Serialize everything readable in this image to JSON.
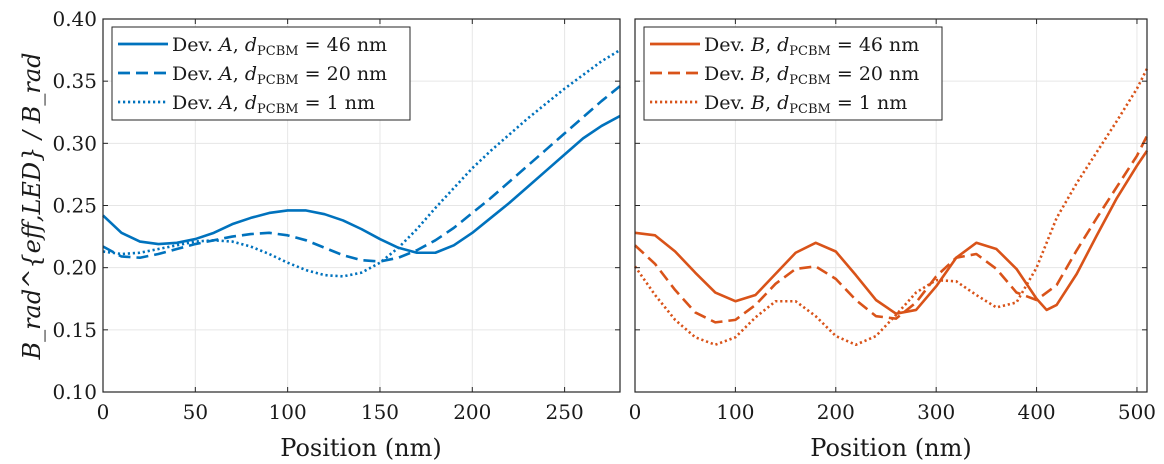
{
  "chart_data": [
    {
      "type": "line",
      "xlabel": "Position (nm)",
      "ylabel": "B_rad^{eff,LED} / B_rad",
      "xlim": [
        0,
        280
      ],
      "ylim": [
        0.1,
        0.4
      ],
      "xticks": [
        0,
        50,
        100,
        150,
        200,
        250
      ],
      "yticks": [
        0.1,
        0.15,
        0.2,
        0.25,
        0.3,
        0.35,
        0.4
      ],
      "ytick_labels": [
        "0.10",
        "0.15",
        "0.20",
        "0.25",
        "0.30",
        "0.35",
        "0.40"
      ],
      "grid": true,
      "legend_position": "top-left",
      "color": "#0072BD",
      "series": [
        {
          "name": "Dev. A, d_PCBM = 46 nm",
          "legend_parts": {
            "pre": "Dev. ",
            "dev": "A",
            "mid": ", ",
            "d": "d",
            "sub": "PCBM",
            "eq": " = 46 nm"
          },
          "style": "solid",
          "x": [
            0,
            10,
            20,
            30,
            40,
            50,
            60,
            70,
            80,
            90,
            100,
            110,
            120,
            130,
            140,
            150,
            160,
            170,
            180,
            190,
            200,
            210,
            220,
            230,
            240,
            250,
            260,
            270,
            280
          ],
          "y": [
            0.242,
            0.228,
            0.221,
            0.219,
            0.22,
            0.223,
            0.228,
            0.235,
            0.24,
            0.244,
            0.246,
            0.246,
            0.243,
            0.238,
            0.231,
            0.223,
            0.216,
            0.212,
            0.212,
            0.218,
            0.228,
            0.24,
            0.252,
            0.265,
            0.278,
            0.291,
            0.304,
            0.314,
            0.322
          ]
        },
        {
          "name": "Dev. A, d_PCBM = 20 nm",
          "legend_parts": {
            "pre": "Dev. ",
            "dev": "A",
            "mid": ", ",
            "d": "d",
            "sub": "PCBM",
            "eq": " = 20 nm"
          },
          "style": "dashed",
          "x": [
            0,
            10,
            20,
            30,
            40,
            50,
            60,
            70,
            80,
            90,
            100,
            110,
            120,
            130,
            140,
            150,
            160,
            170,
            180,
            190,
            200,
            210,
            220,
            230,
            240,
            250,
            260,
            270,
            280
          ],
          "y": [
            0.217,
            0.209,
            0.208,
            0.211,
            0.215,
            0.219,
            0.222,
            0.225,
            0.227,
            0.228,
            0.226,
            0.222,
            0.216,
            0.21,
            0.206,
            0.205,
            0.208,
            0.214,
            0.222,
            0.232,
            0.244,
            0.256,
            0.269,
            0.282,
            0.295,
            0.308,
            0.321,
            0.334,
            0.346
          ]
        },
        {
          "name": "Dev. A, d_PCBM = 1 nm",
          "legend_parts": {
            "pre": "Dev. ",
            "dev": "A",
            "mid": ", ",
            "d": "d",
            "sub": "PCBM",
            "eq": " = 1 nm"
          },
          "style": "dotted",
          "x": [
            0,
            10,
            20,
            30,
            40,
            50,
            60,
            70,
            80,
            90,
            100,
            110,
            120,
            130,
            140,
            150,
            160,
            170,
            180,
            190,
            200,
            210,
            220,
            230,
            240,
            250,
            260,
            270,
            280
          ],
          "y": [
            0.213,
            0.211,
            0.212,
            0.215,
            0.218,
            0.221,
            0.222,
            0.221,
            0.217,
            0.211,
            0.204,
            0.198,
            0.194,
            0.193,
            0.196,
            0.204,
            0.216,
            0.231,
            0.248,
            0.264,
            0.28,
            0.294,
            0.307,
            0.32,
            0.332,
            0.344,
            0.355,
            0.366,
            0.375
          ]
        }
      ]
    },
    {
      "type": "line",
      "xlabel": "Position (nm)",
      "ylabel": "",
      "xlim": [
        0,
        510
      ],
      "ylim": [
        0.1,
        0.4
      ],
      "xticks": [
        0,
        100,
        200,
        300,
        400,
        500
      ],
      "yticks": [
        0.1,
        0.15,
        0.2,
        0.25,
        0.3,
        0.35,
        0.4
      ],
      "ytick_labels": [],
      "grid": true,
      "legend_position": "top-left",
      "color": "#D95319",
      "series": [
        {
          "name": "Dev. B, d_PCBM = 46 nm",
          "legend_parts": {
            "pre": "Dev. ",
            "dev": "B",
            "mid": ", ",
            "d": "d",
            "sub": "PCBM",
            "eq": " = 46 nm"
          },
          "style": "solid",
          "x": [
            0,
            20,
            40,
            60,
            80,
            100,
            120,
            140,
            160,
            180,
            200,
            220,
            240,
            260,
            280,
            300,
            320,
            340,
            360,
            380,
            400,
            410,
            420,
            440,
            460,
            480,
            500,
            510
          ],
          "y": [
            0.228,
            0.226,
            0.213,
            0.196,
            0.18,
            0.173,
            0.178,
            0.195,
            0.212,
            0.22,
            0.213,
            0.194,
            0.174,
            0.163,
            0.166,
            0.185,
            0.208,
            0.22,
            0.215,
            0.199,
            0.175,
            0.166,
            0.17,
            0.195,
            0.226,
            0.256,
            0.282,
            0.294
          ]
        },
        {
          "name": "Dev. B, d_PCBM = 20 nm",
          "legend_parts": {
            "pre": "Dev. ",
            "dev": "B",
            "mid": ", ",
            "d": "d",
            "sub": "PCBM",
            "eq": " = 20 nm"
          },
          "style": "dashed",
          "x": [
            0,
            20,
            40,
            60,
            80,
            100,
            120,
            140,
            160,
            180,
            200,
            220,
            240,
            260,
            280,
            300,
            320,
            340,
            360,
            380,
            400,
            420,
            440,
            460,
            480,
            500,
            510
          ],
          "y": [
            0.218,
            0.203,
            0.182,
            0.164,
            0.156,
            0.158,
            0.17,
            0.187,
            0.199,
            0.201,
            0.191,
            0.174,
            0.161,
            0.159,
            0.172,
            0.193,
            0.208,
            0.211,
            0.199,
            0.18,
            0.174,
            0.186,
            0.214,
            0.24,
            0.265,
            0.29,
            0.306
          ]
        },
        {
          "name": "Dev. B, d_PCBM = 1 nm",
          "legend_parts": {
            "pre": "Dev. ",
            "dev": "B",
            "mid": ", ",
            "d": "d",
            "sub": "PCBM",
            "eq": " = 1 nm"
          },
          "style": "dotted",
          "x": [
            0,
            20,
            40,
            60,
            80,
            100,
            120,
            140,
            160,
            180,
            200,
            220,
            240,
            260,
            280,
            300,
            320,
            340,
            360,
            380,
            400,
            420,
            440,
            460,
            480,
            500,
            510
          ],
          "y": [
            0.201,
            0.178,
            0.158,
            0.144,
            0.138,
            0.144,
            0.16,
            0.173,
            0.173,
            0.161,
            0.145,
            0.138,
            0.145,
            0.162,
            0.18,
            0.19,
            0.189,
            0.178,
            0.168,
            0.172,
            0.2,
            0.24,
            0.268,
            0.293,
            0.318,
            0.344,
            0.36
          ]
        }
      ]
    }
  ]
}
